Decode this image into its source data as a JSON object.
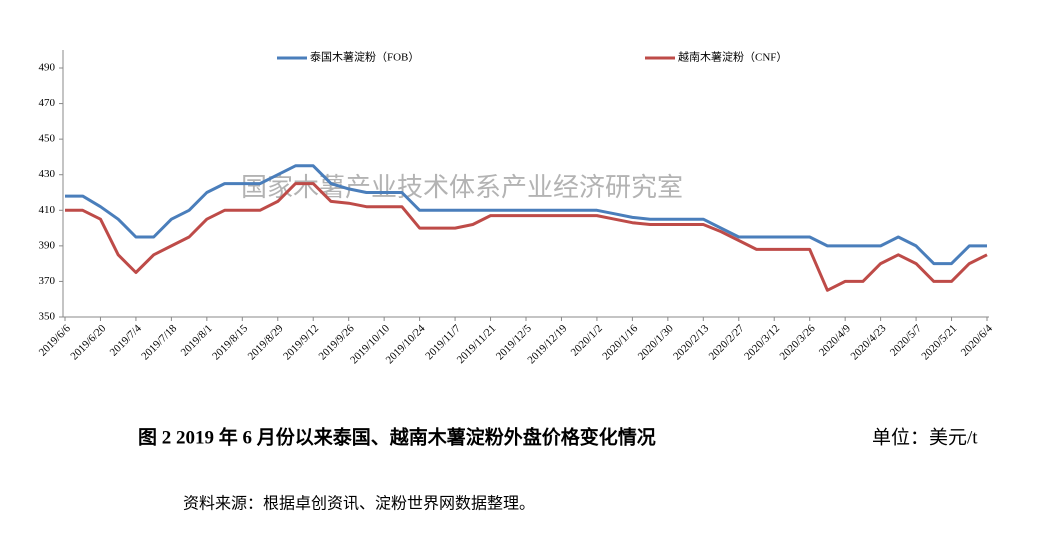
{
  "chart_data": {
    "type": "line",
    "title": "图 2   2019 年 6 月份以来泰国、越南木薯淀粉外盘价格变化情况",
    "unit": "单位：美元/t",
    "source": "资料来源：根据卓创资讯、淀粉世界网数据整理。",
    "watermark": "国家木薯产业技术体系产业经济研究室",
    "categories": [
      "2019/6/6",
      null,
      "2019/6/20",
      null,
      "2019/7/4",
      null,
      "2019/7/18",
      null,
      "2019/8/1",
      null,
      "2019/8/15",
      null,
      "2019/8/29",
      null,
      "2019/9/12",
      null,
      "2019/9/26",
      null,
      "2019/10/10",
      null,
      "2019/10/24",
      null,
      "2019/11/7",
      null,
      "2019/11/21",
      null,
      "2019/12/5",
      null,
      "2019/12/19",
      null,
      "2020/1/2",
      null,
      "2020/1/16",
      null,
      "2020/1/30",
      null,
      "2020/2/13",
      null,
      "2020/2/27",
      null,
      "2020/3/12",
      null,
      "2020/3/26",
      null,
      "2020/4/9",
      null,
      "2020/4/23",
      null,
      "2020/5/7",
      null,
      "2020/5/21",
      null,
      "2020/6/4"
    ],
    "series": [
      {
        "name": "泰国木薯淀粉（FOB）",
        "color": "#4a7ebb",
        "values": [
          418,
          418,
          412,
          405,
          395,
          395,
          405,
          410,
          420,
          425,
          425,
          425,
          430,
          435,
          435,
          425,
          422,
          420,
          420,
          420,
          410,
          410,
          410,
          410,
          410,
          410,
          410,
          410,
          410,
          410,
          410,
          408,
          406,
          405,
          405,
          405,
          405,
          400,
          395,
          395,
          395,
          395,
          395,
          390,
          390,
          390,
          390,
          395,
          390,
          380,
          380,
          390,
          390
        ]
      },
      {
        "name": "越南木薯淀粉（CNF）",
        "color": "#be4b48",
        "values": [
          410,
          410,
          405,
          385,
          375,
          385,
          390,
          395,
          405,
          410,
          410,
          410,
          415,
          425,
          425,
          415,
          414,
          412,
          412,
          412,
          400,
          400,
          400,
          402,
          407,
          407,
          407,
          407,
          407,
          407,
          407,
          405,
          403,
          402,
          402,
          402,
          402,
          398,
          393,
          388,
          388,
          388,
          388,
          365,
          370,
          370,
          380,
          385,
          380,
          370,
          370,
          380,
          385
        ]
      }
    ],
    "ylim": [
      350,
      490
    ],
    "yticks": [
      350,
      370,
      390,
      410,
      430,
      450,
      470,
      490
    ],
    "grid": false
  }
}
